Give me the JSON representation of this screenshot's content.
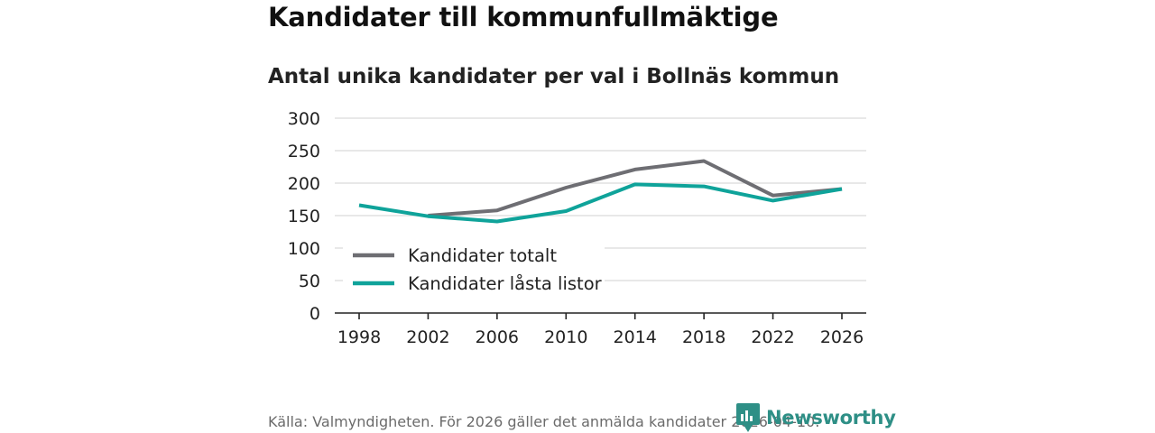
{
  "header": {
    "title": "Kandidater till kommunfullmäktige",
    "subtitle": "Antal unika kandidater per val i Bollnäs kommun"
  },
  "footer": {
    "source": "Källa: Valmyndigheten. För 2026 gäller det anmälda kandidater 2026-04-10.",
    "brand": "Newsworthy",
    "brand_color": "#2e8f86"
  },
  "chart_data": {
    "type": "line",
    "title": "Kandidater till kommunfullmäktige",
    "subtitle": "Antal unika kandidater per val i Bollnäs kommun",
    "categories": [
      "1998",
      "2002",
      "2006",
      "2010",
      "2014",
      "2018",
      "2022",
      "2026"
    ],
    "series": [
      {
        "name": "Kandidater totalt",
        "color": "#6e6e73",
        "values": [
          null,
          150,
          158,
          193,
          221,
          234,
          181,
          191
        ]
      },
      {
        "name": "Kandidater låsta listor",
        "color": "#0fa39a",
        "values": [
          166,
          149,
          141,
          157,
          198,
          195,
          173,
          191
        ]
      }
    ],
    "yticks": [
      0,
      50,
      100,
      150,
      200,
      250,
      300
    ],
    "ylim": [
      0,
      300
    ],
    "xlabel": "",
    "ylabel": "",
    "grid": true,
    "legend_position": "bottom-left"
  }
}
